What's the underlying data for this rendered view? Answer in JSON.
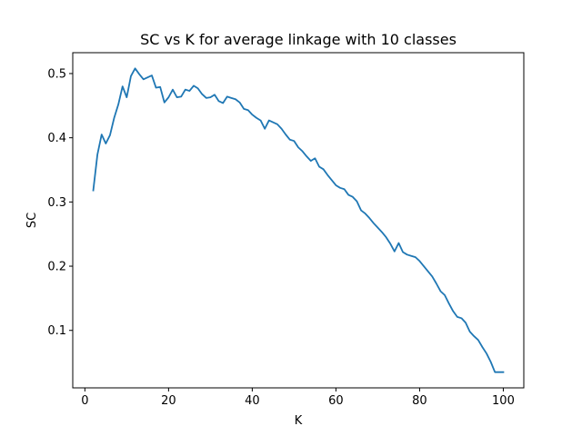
{
  "chart_data": {
    "type": "line",
    "title": "SC vs K for average linkage with 10 classes",
    "xlabel": "K",
    "ylabel": "SC",
    "xlim": [
      -2.9,
      104.9
    ],
    "ylim": [
      0.0105,
      0.5325
    ],
    "xticks": [
      0,
      20,
      40,
      60,
      80,
      100
    ],
    "yticks": [
      0.1,
      0.2,
      0.3,
      0.4,
      0.5
    ],
    "xtick_labels": [
      "0",
      "20",
      "40",
      "60",
      "80",
      "100"
    ],
    "ytick_labels": [
      "0.1",
      "0.2",
      "0.3",
      "0.4",
      "0.5"
    ],
    "grid": false,
    "series_color": "#1f77b4",
    "series": [
      {
        "x": [
          2,
          3,
          4,
          5,
          6,
          7,
          8,
          9,
          10,
          11,
          12,
          13,
          14,
          15,
          16,
          17,
          18,
          19,
          20,
          21,
          22,
          23,
          24,
          25,
          26,
          27,
          28,
          29,
          30,
          31,
          32,
          33,
          34,
          35,
          36,
          37,
          38,
          39,
          40,
          41,
          42,
          43,
          44,
          45,
          46,
          47,
          48,
          49,
          50,
          51,
          52,
          53,
          54,
          55,
          56,
          57,
          58,
          59,
          60,
          61,
          62,
          63,
          64,
          65,
          66,
          67,
          68,
          69,
          70,
          71,
          72,
          73,
          74,
          75,
          76,
          77,
          78,
          79,
          80,
          81,
          82,
          83,
          84,
          85,
          86,
          87,
          88,
          89,
          90,
          91,
          92,
          93,
          94,
          95,
          96,
          97,
          98,
          99,
          100
        ],
        "values": [
          0.318,
          0.374,
          0.405,
          0.391,
          0.404,
          0.431,
          0.452,
          0.48,
          0.463,
          0.496,
          0.508,
          0.499,
          0.491,
          0.494,
          0.497,
          0.478,
          0.479,
          0.455,
          0.463,
          0.475,
          0.463,
          0.464,
          0.475,
          0.473,
          0.481,
          0.477,
          0.468,
          0.462,
          0.463,
          0.467,
          0.457,
          0.454,
          0.464,
          0.462,
          0.46,
          0.455,
          0.445,
          0.443,
          0.436,
          0.431,
          0.427,
          0.414,
          0.427,
          0.424,
          0.421,
          0.414,
          0.405,
          0.397,
          0.395,
          0.385,
          0.379,
          0.371,
          0.364,
          0.368,
          0.355,
          0.351,
          0.342,
          0.334,
          0.326,
          0.322,
          0.32,
          0.311,
          0.308,
          0.301,
          0.287,
          0.282,
          0.275,
          0.267,
          0.26,
          0.253,
          0.245,
          0.235,
          0.223,
          0.236,
          0.222,
          0.218,
          0.216,
          0.214,
          0.208,
          0.2,
          0.192,
          0.184,
          0.173,
          0.161,
          0.155,
          0.142,
          0.13,
          0.121,
          0.119,
          0.112,
          0.098,
          0.091,
          0.085,
          0.074,
          0.064,
          0.051,
          0.035,
          0.035,
          0.035
        ]
      }
    ]
  }
}
